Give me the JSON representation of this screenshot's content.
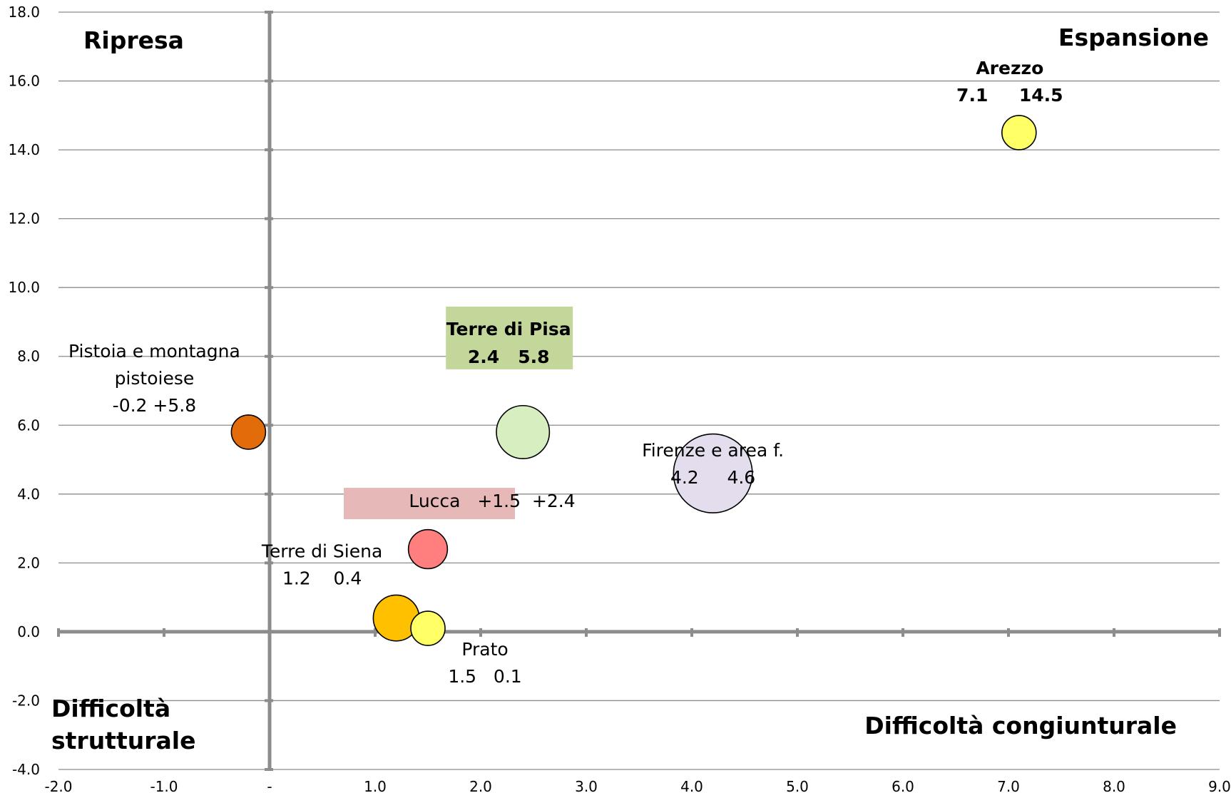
{
  "chart_data": {
    "type": "scatter",
    "subtype": "bubble",
    "xlim": [
      -2.0,
      9.0
    ],
    "ylim": [
      -4.0,
      18.0
    ],
    "x_ticks": [
      "-2.0",
      "-1.0",
      "-",
      "1.0",
      "2.0",
      "3.0",
      "4.0",
      "5.0",
      "6.0",
      "7.0",
      "8.0",
      "9.0"
    ],
    "y_ticks": [
      "-4.0",
      "-2.0",
      "0.0",
      "2.0",
      "4.0",
      "6.0",
      "8.0",
      "10.0",
      "12.0",
      "14.0",
      "16.0",
      "18.0"
    ],
    "grid": "horizontal",
    "quadrants": {
      "top_left": "Ripresa",
      "top_right": "Espansione",
      "bottom_left_1": "Difficoltà",
      "bottom_left_2": "strutturale",
      "bottom_right": "Difficoltà congiunturale"
    },
    "points": [
      {
        "x": -0.2,
        "y": 5.8,
        "size": 1.0,
        "color": "#E36C0A",
        "label_lines": [
          "Pistoia e montagna",
          "pistoiese",
          "-0.2 +5.8"
        ]
      },
      {
        "x": 7.1,
        "y": 14.5,
        "size": 1.0,
        "color": "#FFFF66",
        "label_lines": [
          "Arezzo",
          "7.1     14.5"
        ]
      },
      {
        "x": 2.4,
        "y": 5.8,
        "size": 2.4,
        "color": "#D7EEC0",
        "label_lines": [
          "Terre di Pisa",
          "2.4   5.8"
        ],
        "label_bg": "#C4D79B"
      },
      {
        "x": 4.2,
        "y": 4.6,
        "size": 5.3,
        "color": "#E4DDED",
        "label_lines": [
          "Firenze e area f.",
          "4.2     4.6"
        ]
      },
      {
        "x": 1.5,
        "y": 2.4,
        "size": 1.3,
        "color": "#FF7F7F",
        "label_lines": [
          "Lucca   +1.5  +2.4"
        ],
        "label_bg": "#E6B8B7"
      },
      {
        "x": 1.5,
        "y": 0.1,
        "size": 1.0,
        "color": "#FFFF66",
        "label_lines": [
          "Prato",
          "1.5   0.1"
        ]
      },
      {
        "x": 1.2,
        "y": 0.4,
        "size": 1.8,
        "color": "#FFC000",
        "label_lines": [
          "Terre di Siena",
          "1.2    0.4"
        ]
      }
    ]
  }
}
